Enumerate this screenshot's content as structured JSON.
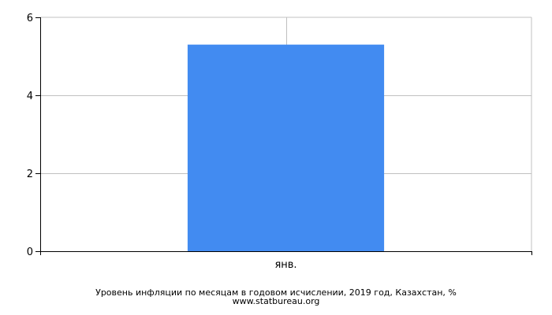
{
  "chart_data": {
    "type": "bar",
    "categories": [
      "янв."
    ],
    "series": [
      {
        "values": [
          5.3
        ]
      }
    ],
    "ylim": [
      0,
      6
    ],
    "yticks": [
      0,
      2,
      4,
      6
    ],
    "grid": true,
    "colors": {
      "bar": "#428bf1",
      "grid": "#c0c0c0",
      "axis": "#000000"
    },
    "caption": "Уровень инфляции по месяцам в годовом исчислении, 2019 год, Казахстан, %",
    "source": "www.statbureau.org"
  }
}
